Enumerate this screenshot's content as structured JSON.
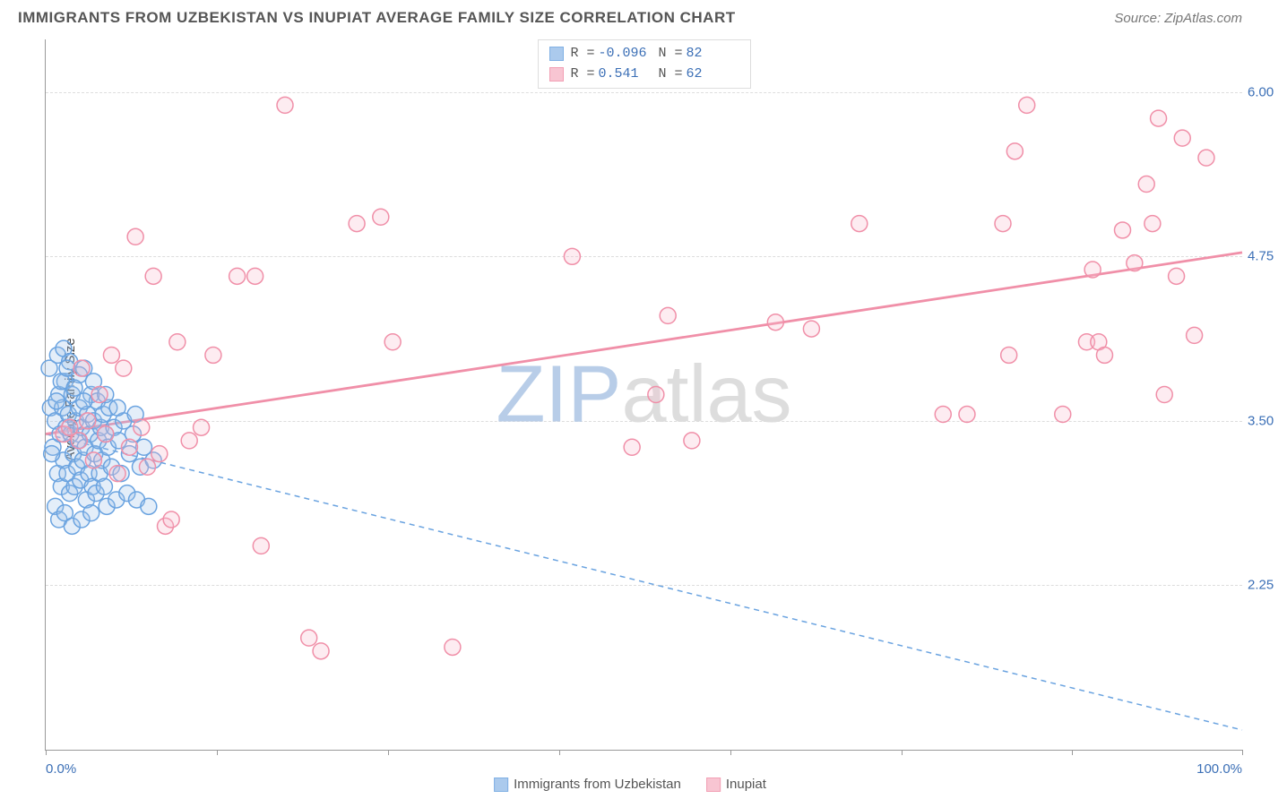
{
  "header": {
    "title": "IMMIGRANTS FROM UZBEKISTAN VS INUPIAT AVERAGE FAMILY SIZE CORRELATION CHART",
    "source_prefix": "Source: ",
    "source_name": "ZipAtlas.com"
  },
  "watermark": {
    "part1": "ZIP",
    "part2": "atlas"
  },
  "chart": {
    "type": "scatter",
    "background_color": "#ffffff",
    "grid_color": "#dddddd",
    "axis_color": "#999999",
    "tick_label_color": "#3b6fb6",
    "ylabel": "Average Family Size",
    "xlim": [
      0,
      100
    ],
    "ylim": [
      1.0,
      6.4
    ],
    "yticks": [
      2.25,
      3.5,
      4.75,
      6.0
    ],
    "ytick_labels": [
      "2.25",
      "3.50",
      "4.75",
      "6.00"
    ],
    "xticks": [
      0,
      14.3,
      28.6,
      42.9,
      57.2,
      71.5,
      85.8,
      100
    ],
    "xaxis_min_label": "0.0%",
    "xaxis_max_label": "100.0%",
    "marker_radius": 9,
    "marker_stroke_width": 1.5,
    "fill_opacity": 0.28,
    "series": [
      {
        "key": "uzbekistan",
        "label": "Immigrants from Uzbekistan",
        "color_stroke": "#6aa3e0",
        "color_fill": "#9dc1ea",
        "R_label": "R =",
        "R_value": "-0.096",
        "N_label": "N =",
        "N_value": "82",
        "trend": {
          "x1": 0,
          "y1": 3.4,
          "x2": 100,
          "y2": 1.15,
          "dash": "6,5",
          "width": 1.5
        },
        "points": [
          [
            0.3,
            3.9
          ],
          [
            0.4,
            3.6
          ],
          [
            0.6,
            3.3
          ],
          [
            0.8,
            3.5
          ],
          [
            1.0,
            3.1
          ],
          [
            1.1,
            3.7
          ],
          [
            1.2,
            3.4
          ],
          [
            1.3,
            3.0
          ],
          [
            1.4,
            3.6
          ],
          [
            1.5,
            3.2
          ],
          [
            1.6,
            3.8
          ],
          [
            1.7,
            3.45
          ],
          [
            1.8,
            3.1
          ],
          [
            1.9,
            3.55
          ],
          [
            2.0,
            2.95
          ],
          [
            2.1,
            3.4
          ],
          [
            2.2,
            3.7
          ],
          [
            2.3,
            3.25
          ],
          [
            2.4,
            3.0
          ],
          [
            2.5,
            3.5
          ],
          [
            2.6,
            3.15
          ],
          [
            2.7,
            3.35
          ],
          [
            2.8,
            3.6
          ],
          [
            2.9,
            3.05
          ],
          [
            3.0,
            3.45
          ],
          [
            3.1,
            3.2
          ],
          [
            3.2,
            3.9
          ],
          [
            3.3,
            3.3
          ],
          [
            3.4,
            2.9
          ],
          [
            3.5,
            3.55
          ],
          [
            3.6,
            3.1
          ],
          [
            3.7,
            3.4
          ],
          [
            3.8,
            3.7
          ],
          [
            3.9,
            3.0
          ],
          [
            4.0,
            3.5
          ],
          [
            4.1,
            3.25
          ],
          [
            4.2,
            2.95
          ],
          [
            4.3,
            3.65
          ],
          [
            4.4,
            3.35
          ],
          [
            4.5,
            3.1
          ],
          [
            4.6,
            3.45
          ],
          [
            4.7,
            3.2
          ],
          [
            4.8,
            3.55
          ],
          [
            4.9,
            3.0
          ],
          [
            5.0,
            3.4
          ],
          [
            5.1,
            2.85
          ],
          [
            5.2,
            3.3
          ],
          [
            5.3,
            3.6
          ],
          [
            5.5,
            3.15
          ],
          [
            5.7,
            3.45
          ],
          [
            5.9,
            2.9
          ],
          [
            6.1,
            3.35
          ],
          [
            6.3,
            3.1
          ],
          [
            6.5,
            3.5
          ],
          [
            6.8,
            2.95
          ],
          [
            7.0,
            3.25
          ],
          [
            7.3,
            3.4
          ],
          [
            7.6,
            2.9
          ],
          [
            7.9,
            3.15
          ],
          [
            8.2,
            3.3
          ],
          [
            8.6,
            2.85
          ],
          [
            9.0,
            3.2
          ],
          [
            1.0,
            4.0
          ],
          [
            1.5,
            4.05
          ],
          [
            2.0,
            3.95
          ],
          [
            2.8,
            3.85
          ],
          [
            0.8,
            2.85
          ],
          [
            1.1,
            2.75
          ],
          [
            1.6,
            2.8
          ],
          [
            2.2,
            2.7
          ],
          [
            3.0,
            2.75
          ],
          [
            3.8,
            2.8
          ],
          [
            0.5,
            3.25
          ],
          [
            0.9,
            3.65
          ],
          [
            1.3,
            3.8
          ],
          [
            1.8,
            3.9
          ],
          [
            2.4,
            3.75
          ],
          [
            3.2,
            3.65
          ],
          [
            4.0,
            3.8
          ],
          [
            5.0,
            3.7
          ],
          [
            6.0,
            3.6
          ],
          [
            7.5,
            3.55
          ]
        ]
      },
      {
        "key": "inupiat",
        "label": "Inupiat",
        "color_stroke": "#f08fa8",
        "color_fill": "#f7bccb",
        "R_label": "R =",
        "R_value": "0.541",
        "N_label": "N =",
        "N_value": "62",
        "trend": {
          "x1": 0,
          "y1": 3.4,
          "x2": 100,
          "y2": 4.78,
          "dash": null,
          "width": 2.8
        },
        "points": [
          [
            1.5,
            3.4
          ],
          [
            2.0,
            3.45
          ],
          [
            2.8,
            3.35
          ],
          [
            3.5,
            3.5
          ],
          [
            4.0,
            3.2
          ],
          [
            5.0,
            3.4
          ],
          [
            6.0,
            3.1
          ],
          [
            7.0,
            3.3
          ],
          [
            8.0,
            3.45
          ],
          [
            9.5,
            3.25
          ],
          [
            10.0,
            2.7
          ],
          [
            10.5,
            2.75
          ],
          [
            12.0,
            3.35
          ],
          [
            13.0,
            3.45
          ],
          [
            5.5,
            4.0
          ],
          [
            9.0,
            4.6
          ],
          [
            16.0,
            4.6
          ],
          [
            17.5,
            4.6
          ],
          [
            20.0,
            5.9
          ],
          [
            22.0,
            1.85
          ],
          [
            23.0,
            1.75
          ],
          [
            26.0,
            5.0
          ],
          [
            28.0,
            5.05
          ],
          [
            29.0,
            4.1
          ],
          [
            34.0,
            1.78
          ],
          [
            44.0,
            4.75
          ],
          [
            49.0,
            3.3
          ],
          [
            51.0,
            3.7
          ],
          [
            52.0,
            4.3
          ],
          [
            54.0,
            3.35
          ],
          [
            61.0,
            4.25
          ],
          [
            64.0,
            4.2
          ],
          [
            68.0,
            5.0
          ],
          [
            75.0,
            3.55
          ],
          [
            77.0,
            3.55
          ],
          [
            80.0,
            5.0
          ],
          [
            80.5,
            4.0
          ],
          [
            81.0,
            5.55
          ],
          [
            82.0,
            5.9
          ],
          [
            85.0,
            3.55
          ],
          [
            87.0,
            4.1
          ],
          [
            87.5,
            4.65
          ],
          [
            88.0,
            4.1
          ],
          [
            90.0,
            4.95
          ],
          [
            91.0,
            4.7
          ],
          [
            92.0,
            5.3
          ],
          [
            92.5,
            5.0
          ],
          [
            93.0,
            5.8
          ],
          [
            93.5,
            3.7
          ],
          [
            94.5,
            4.6
          ],
          [
            95.0,
            5.65
          ],
          [
            96.0,
            4.15
          ],
          [
            97.0,
            5.5
          ],
          [
            7.5,
            4.9
          ],
          [
            18.0,
            2.55
          ],
          [
            11.0,
            4.1
          ],
          [
            14.0,
            4.0
          ],
          [
            3.0,
            3.9
          ],
          [
            4.5,
            3.7
          ],
          [
            6.5,
            3.9
          ],
          [
            8.5,
            3.15
          ],
          [
            88.5,
            4.0
          ]
        ]
      }
    ]
  },
  "legend_bottom": [
    {
      "series": 0
    },
    {
      "series": 1
    }
  ]
}
